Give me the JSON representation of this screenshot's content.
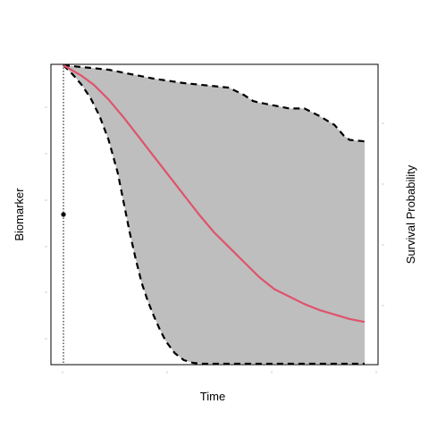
{
  "chart_data": {
    "type": "area",
    "xlabel": "Time",
    "ylabel_left": "Biomarker",
    "ylabel_right": "Survival Probability",
    "xlim": [
      0,
      10
    ],
    "ylim": [
      0,
      1
    ],
    "observation": {
      "time": 0,
      "biomarker": 0.5
    },
    "series": [
      {
        "role": "survival-estimate",
        "x": [
          0,
          0.6,
          1.0,
          1.5,
          2.0,
          2.5,
          3.0,
          3.5,
          4.0,
          4.5,
          5.0,
          5.5,
          6.0,
          6.5,
          7.0,
          7.5,
          8.0,
          8.5,
          9.0,
          9.5,
          10.0
        ],
        "y": [
          1.0,
          0.965,
          0.935,
          0.885,
          0.825,
          0.76,
          0.695,
          0.63,
          0.565,
          0.5,
          0.44,
          0.39,
          0.34,
          0.29,
          0.25,
          0.225,
          0.2,
          0.18,
          0.165,
          0.15,
          0.14
        ]
      },
      {
        "role": "upper-bound",
        "x": [
          0,
          0.5,
          1.0,
          1.5,
          2.0,
          3.0,
          4.0,
          5.0,
          5.5,
          6.0,
          6.3,
          6.5,
          7.0,
          7.5,
          8.0,
          8.5,
          9.0,
          9.3,
          9.5,
          10.0
        ],
        "y": [
          1.0,
          0.995,
          0.99,
          0.985,
          0.975,
          0.955,
          0.94,
          0.93,
          0.925,
          0.9,
          0.88,
          0.875,
          0.865,
          0.855,
          0.855,
          0.83,
          0.8,
          0.765,
          0.75,
          0.745
        ]
      },
      {
        "role": "lower-bound",
        "x": [
          0,
          0.3,
          0.6,
          0.9,
          1.2,
          1.5,
          1.8,
          2.0,
          2.2,
          2.4,
          2.6,
          2.8,
          3.0,
          3.2,
          3.4,
          3.7,
          4.0,
          4.3,
          4.6,
          5.0,
          6.0,
          7.0,
          8.0,
          9.0,
          10.0
        ],
        "y": [
          1.0,
          0.97,
          0.935,
          0.89,
          0.83,
          0.75,
          0.64,
          0.54,
          0.44,
          0.35,
          0.27,
          0.21,
          0.16,
          0.115,
          0.075,
          0.035,
          0.012,
          0.003,
          0.0,
          0.0,
          0.0,
          0.0,
          0.0,
          0.0,
          0.0
        ]
      }
    ],
    "grid": false,
    "legend": "none",
    "colors": {
      "band_fill": "#bebebe",
      "estimate_line": "#df536b",
      "bound_line": "#000000",
      "frame": "#000000",
      "background": "#ffffff"
    }
  }
}
